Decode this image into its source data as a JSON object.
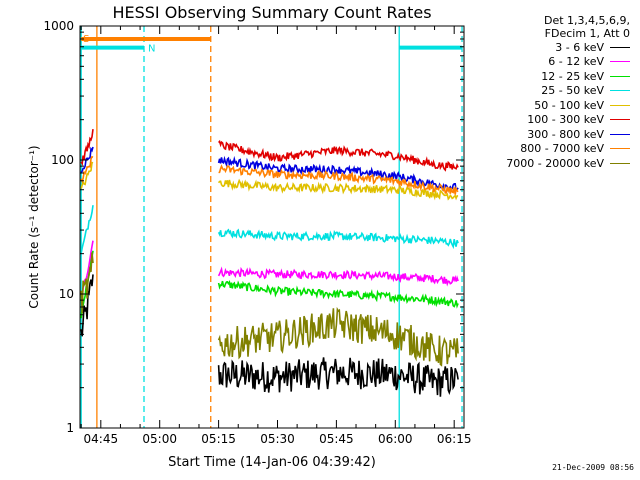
{
  "chart_data": {
    "type": "line",
    "title": "HESSI Observing Summary Count Rates",
    "xlabel": "Start Time (14-Jan-06 04:39:42)",
    "ylabel": "Count Rate (s⁻¹ detector⁻¹)",
    "y_scale": "log",
    "ylim": [
      1,
      1000
    ],
    "xlim": [
      "04:39:42",
      "06:17:30"
    ],
    "x_ticks": [
      "04:45",
      "05:00",
      "05:15",
      "05:30",
      "05:45",
      "06:00",
      "06:15"
    ],
    "y_ticks": [
      "1",
      "10",
      "100",
      "1000"
    ],
    "legend_header": [
      "Det 1,3,4,5,6,9,",
      "FDecim 1, Att 0"
    ],
    "legend_position": "right",
    "series": [
      {
        "name": "3 - 6 keV",
        "color": "#000000",
        "x": [
          "04:40",
          "04:42",
          "04:43",
          "05:15",
          "05:30",
          "05:45",
          "06:00",
          "06:10",
          "06:16"
        ],
        "y": [
          5,
          9,
          14,
          2.5,
          2.4,
          2.6,
          2.5,
          2.2,
          2.3
        ]
      },
      {
        "name": "6 - 12 keV",
        "color": "#ff00ff",
        "x": [
          "04:40",
          "04:42",
          "04:43",
          "05:15",
          "05:30",
          "05:45",
          "06:00",
          "06:10",
          "06:16"
        ],
        "y": [
          9,
          17,
          25,
          14.5,
          14,
          14,
          13.5,
          13,
          12.5
        ]
      },
      {
        "name": "12 - 25 keV",
        "color": "#00e000",
        "x": [
          "04:40",
          "04:42",
          "04:43",
          "05:15",
          "05:30",
          "05:45",
          "06:00",
          "06:10",
          "06:16"
        ],
        "y": [
          7,
          14,
          21,
          12,
          10.5,
          10,
          9.5,
          9,
          8.5
        ]
      },
      {
        "name": "25 - 50 keV",
        "color": "#00e0e0",
        "x": [
          "04:40",
          "04:42",
          "04:43",
          "05:15",
          "05:30",
          "05:45",
          "06:00",
          "06:10",
          "06:16"
        ],
        "y": [
          20,
          35,
          46,
          29,
          27,
          27,
          26,
          25,
          24
        ]
      },
      {
        "name": "50 - 100 keV",
        "color": "#e0c000",
        "x": [
          "04:40",
          "04:42",
          "04:43",
          "05:15",
          "05:30",
          "05:45",
          "06:00",
          "06:10",
          "06:16"
        ],
        "y": [
          60,
          80,
          95,
          68,
          62,
          62,
          60,
          56,
          54
        ]
      },
      {
        "name": "100 - 300 keV",
        "color": "#e00000",
        "x": [
          "04:40",
          "04:42",
          "04:43",
          "05:15",
          "05:30",
          "05:45",
          "06:00",
          "06:10",
          "06:16"
        ],
        "y": [
          95,
          130,
          170,
          130,
          104,
          118,
          108,
          92,
          88
        ]
      },
      {
        "name": "300 - 800 keV",
        "color": "#0000e0",
        "x": [
          "04:40",
          "04:42",
          "04:43",
          "05:15",
          "05:30",
          "05:45",
          "06:00",
          "06:10",
          "06:16"
        ],
        "y": [
          85,
          105,
          125,
          100,
          86,
          85,
          76,
          66,
          62
        ]
      },
      {
        "name": "800 - 7000 keV",
        "color": "#ff8000",
        "x": [
          "04:40",
          "04:42",
          "04:43",
          "05:15",
          "05:30",
          "05:45",
          "06:00",
          "06:10",
          "06:16"
        ],
        "y": [
          70,
          88,
          105,
          86,
          78,
          76,
          70,
          62,
          58
        ]
      },
      {
        "name": "7000 - 20000 keV",
        "color": "#808000",
        "x": [
          "04:40",
          "04:42",
          "04:43",
          "05:15",
          "05:30",
          "05:45",
          "06:00",
          "06:10",
          "06:16"
        ],
        "y": [
          9,
          12,
          17,
          4.2,
          4.8,
          6,
          5,
          3.8,
          3.6
        ]
      }
    ],
    "flag_bars": [
      {
        "label": "S",
        "color": "#ff8000",
        "x_start": "04:40",
        "x_end": "05:13",
        "y": 800
      },
      {
        "label": "N",
        "color": "#00e0e0",
        "x_start": "04:40",
        "x_end": "04:56",
        "y": 690
      },
      {
        "label": "",
        "color": "#00e0e0",
        "x_start": "06:01",
        "x_end": "06:17",
        "y": 690
      }
    ],
    "vertical_markers": [
      {
        "x": "04:40",
        "color": "#00e0e0",
        "style": "solid"
      },
      {
        "x": "04:44",
        "color": "#ff8000",
        "style": "solid"
      },
      {
        "x": "04:56",
        "color": "#00e0e0",
        "style": "dashed"
      },
      {
        "x": "05:13",
        "color": "#ff8000",
        "style": "dashed"
      },
      {
        "x": "06:01",
        "color": "#00e0e0",
        "style": "solid"
      },
      {
        "x": "06:17",
        "color": "#00e0e0",
        "style": "dashed"
      }
    ],
    "data_gap": [
      "04:43",
      "05:14"
    ]
  },
  "footer": {
    "timestamp": "21-Dec-2009 08:56"
  }
}
